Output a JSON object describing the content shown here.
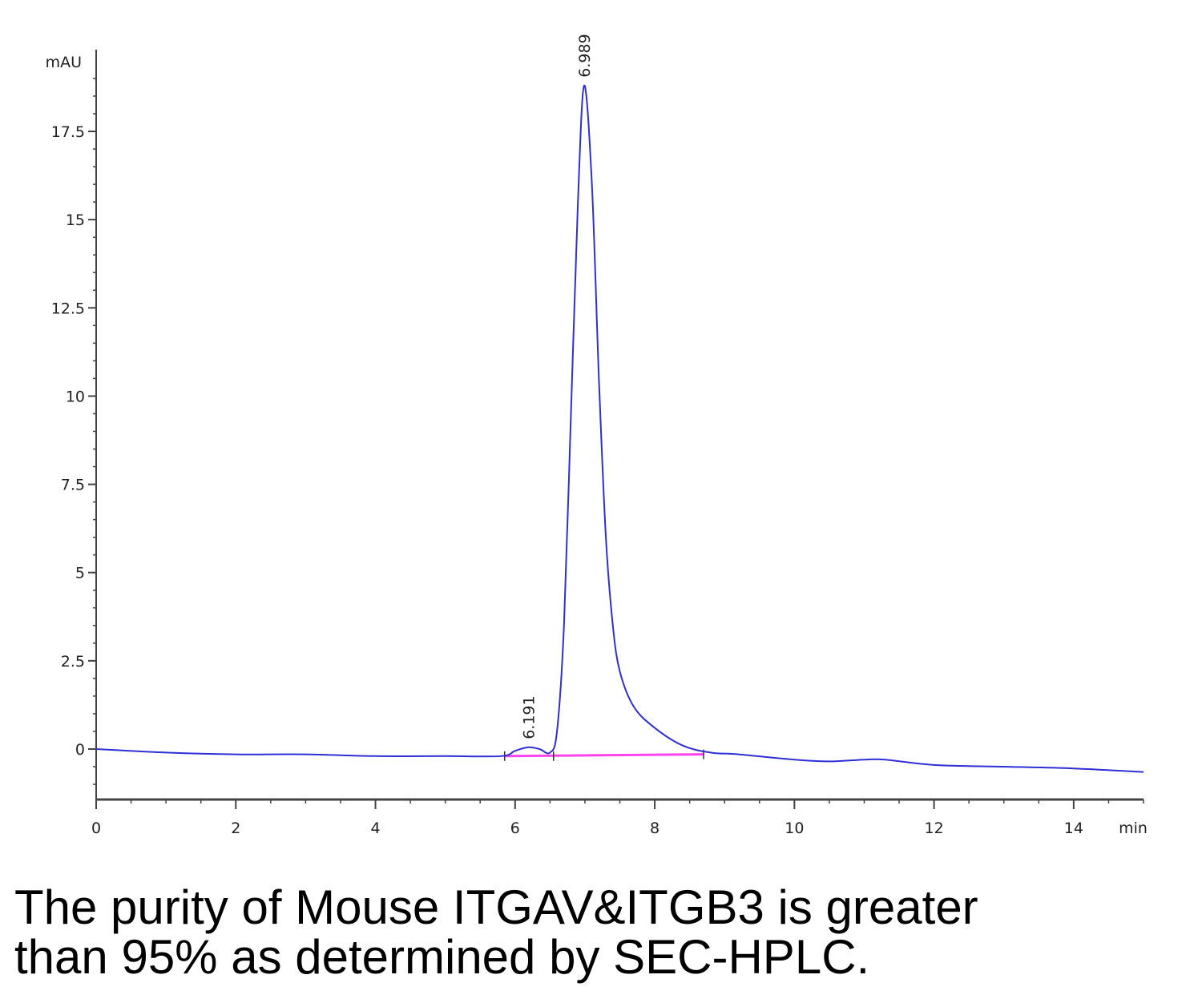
{
  "caption": {
    "line1": "The purity of Mouse ITGAV&ITGB3 is greater",
    "line2": "than 95% as determined by SEC-HPLC."
  },
  "chart_data": {
    "type": "line",
    "title": "",
    "xlabel": "min",
    "ylabel": "mAU",
    "xlim": [
      0,
      15
    ],
    "ylim": [
      -1.5,
      19.5
    ],
    "x_ticks": [
      0,
      2,
      4,
      6,
      8,
      10,
      12,
      14
    ],
    "y_ticks": [
      0,
      2.5,
      5,
      7.5,
      10,
      12.5,
      15,
      17.5
    ],
    "y_tick_labels": [
      "0",
      "2.5",
      "5",
      "7.5",
      "10",
      "12.5",
      "15",
      "17.5"
    ],
    "grid": false,
    "series": [
      {
        "color": "#2f2fd6",
        "x": [
          0,
          1,
          2,
          3,
          4,
          5,
          5.8,
          6.0,
          6.191,
          6.35,
          6.5,
          6.6,
          6.7,
          6.8,
          6.9,
          6.989,
          7.1,
          7.2,
          7.3,
          7.4,
          7.5,
          7.7,
          8.0,
          8.4,
          8.8,
          9.2,
          10,
          10.5,
          11.0,
          11.3,
          12,
          13,
          14,
          15
        ],
        "y": [
          0.0,
          -0.1,
          -0.15,
          -0.15,
          -0.2,
          -0.2,
          -0.2,
          -0.05,
          0.05,
          0.0,
          -0.1,
          0.5,
          3.5,
          9.5,
          15.5,
          18.8,
          16.0,
          10.5,
          6.0,
          3.5,
          2.2,
          1.2,
          0.6,
          0.1,
          -0.1,
          -0.15,
          -0.3,
          -0.35,
          -0.3,
          -0.3,
          -0.45,
          -0.5,
          -0.55,
          -0.65
        ]
      },
      {
        "color": "#ff44ee",
        "x": [
          5.85,
          8.7
        ],
        "y": [
          -0.2,
          -0.15
        ]
      }
    ],
    "annotations": [
      {
        "text": "6.191",
        "x": 6.191,
        "y": 0.05
      },
      {
        "text": "6.989",
        "x": 6.989,
        "y": 18.8
      }
    ]
  }
}
